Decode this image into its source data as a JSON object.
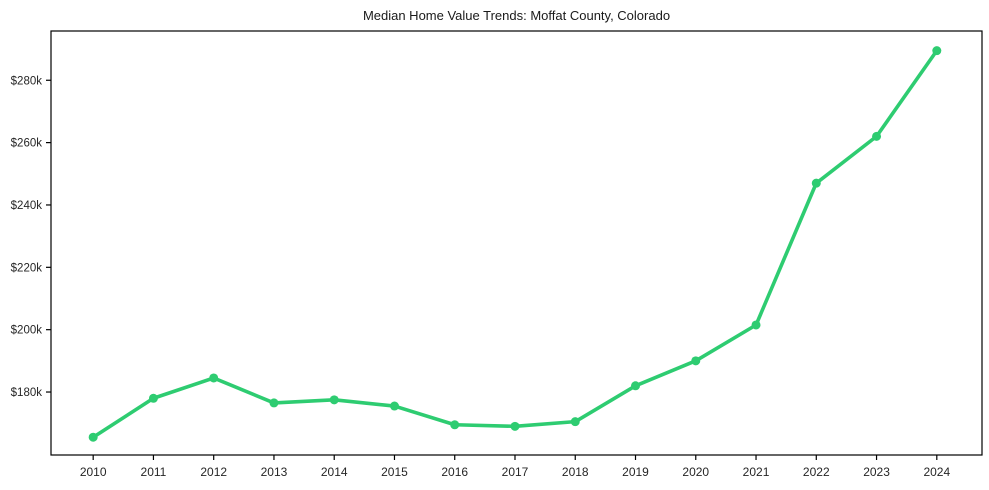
{
  "chart_data": {
    "type": "line",
    "title": "Median Home Value Trends: Moffat County, Colorado",
    "xlabel": "",
    "ylabel": "",
    "x": [
      2010,
      2011,
      2012,
      2013,
      2014,
      2015,
      2016,
      2017,
      2018,
      2019,
      2020,
      2021,
      2022,
      2023,
      2024
    ],
    "x_tick_labels": [
      "2010",
      "2011",
      "2012",
      "2013",
      "2014",
      "2015",
      "2016",
      "2017",
      "2018",
      "2019",
      "2020",
      "2021",
      "2022",
      "2023",
      "2024"
    ],
    "series": [
      {
        "name": "Median Home Value",
        "color": "#2ecc71",
        "marker": "circle",
        "values": [
          165500,
          178000,
          184500,
          176500,
          177500,
          175500,
          169500,
          169000,
          170500,
          182000,
          190000,
          201500,
          247000,
          262000,
          289500
        ]
      }
    ],
    "y_ticks": [
      {
        "value": 180000,
        "label": "$180k"
      },
      {
        "value": 200000,
        "label": "$200k"
      },
      {
        "value": 220000,
        "label": "$220k"
      },
      {
        "value": 240000,
        "label": "$240k"
      },
      {
        "value": 260000,
        "label": "$260k"
      },
      {
        "value": 280000,
        "label": "$280k"
      }
    ],
    "xlim": [
      2009.3,
      2024.75
    ],
    "ylim": [
      159800,
      295800
    ],
    "grid": false,
    "legend": "none",
    "background_color": "#ffffff",
    "spine_color": "#000000",
    "tick_color": "#000000",
    "tick_label_color": "#262626",
    "title_color": "#1a1a1a"
  }
}
